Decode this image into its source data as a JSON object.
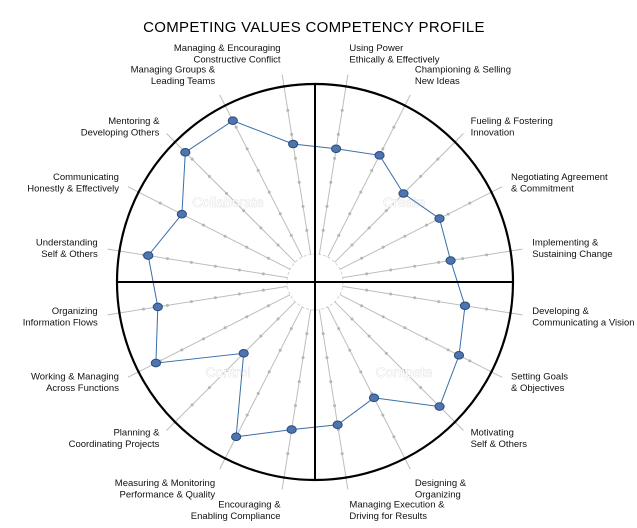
{
  "chart_data": {
    "type": "radar",
    "title": "COMPETING VALUES COMPETENCY PROFILE",
    "quadrants": [
      "Collaborate",
      "Create",
      "Control",
      "Compete"
    ],
    "scale": {
      "min": 0,
      "max": 7,
      "tick_step": 1
    },
    "grid": true,
    "line_color": "#3a6ea8",
    "point_color": "#4f74b0",
    "spoke_color": "#bdbdbd",
    "competencies": [
      {
        "label_lines": [
          "Using Power",
          "Ethically & Effectively"
        ],
        "quadrant": "Create",
        "value": 4.4
      },
      {
        "label_lines": [
          "Championing & Selling",
          "New Ideas"
        ],
        "quadrant": "Create",
        "value": 4.7
      },
      {
        "label_lines": [
          "Fueling & Fostering",
          "Innovation"
        ],
        "quadrant": "Create",
        "value": 4.0
      },
      {
        "label_lines": [
          "Negotiating Agreement",
          "& Commitment"
        ],
        "quadrant": "Create",
        "value": 4.6
      },
      {
        "label_lines": [
          "Implementing &",
          "Sustaining Change"
        ],
        "quadrant": "Create",
        "value": 4.5
      },
      {
        "label_lines": [
          "Developing &",
          "Communicating a Vision"
        ],
        "quadrant": "Compete",
        "value": 5.1
      },
      {
        "label_lines": [
          "Setting Goals",
          "& Objectives"
        ],
        "quadrant": "Compete",
        "value": 5.5
      },
      {
        "label_lines": [
          "Motivating",
          "Self & Others"
        ],
        "quadrant": "Compete",
        "value": 6.1
      },
      {
        "label_lines": [
          "Designing &",
          "Organizing"
        ],
        "quadrant": "Compete",
        "value": 4.2
      },
      {
        "label_lines": [
          "Managing Execution &",
          "Driving for Results"
        ],
        "quadrant": "Compete",
        "value": 4.8
      },
      {
        "label_lines": [
          "Encouraging &",
          "Enabling Compliance"
        ],
        "quadrant": "Control",
        "value": 5.0
      },
      {
        "label_lines": [
          "Measuring & Monitoring",
          "Performance & Quality"
        ],
        "quadrant": "Control",
        "value": 6.0
      },
      {
        "label_lines": [
          "Planning &",
          "Coordinating Projects"
        ],
        "quadrant": "Control",
        "value": 3.0
      },
      {
        "label_lines": [
          "Working & Managing",
          "Across Functions"
        ],
        "quadrant": "Control",
        "value": 6.2
      },
      {
        "label_lines": [
          "Organizing",
          "Information Flows"
        ],
        "quadrant": "Control",
        "value": 5.4
      },
      {
        "label_lines": [
          "Understanding",
          "Self & Others"
        ],
        "quadrant": "Collaborate",
        "value": 5.8
      },
      {
        "label_lines": [
          "Communicating",
          "Honestly & Effectively"
        ],
        "quadrant": "Collaborate",
        "value": 5.0
      },
      {
        "label_lines": [
          "Mentoring &",
          "Developing Others"
        ],
        "quadrant": "Collaborate",
        "value": 6.4
      },
      {
        "label_lines": [
          "Managing Groups &",
          "Leading Teams"
        ],
        "quadrant": "Collaborate",
        "value": 6.3
      },
      {
        "label_lines": [
          "Managing & Encouraging",
          "Constructive Conflict"
        ],
        "quadrant": "Collaborate",
        "value": 4.6
      }
    ]
  }
}
